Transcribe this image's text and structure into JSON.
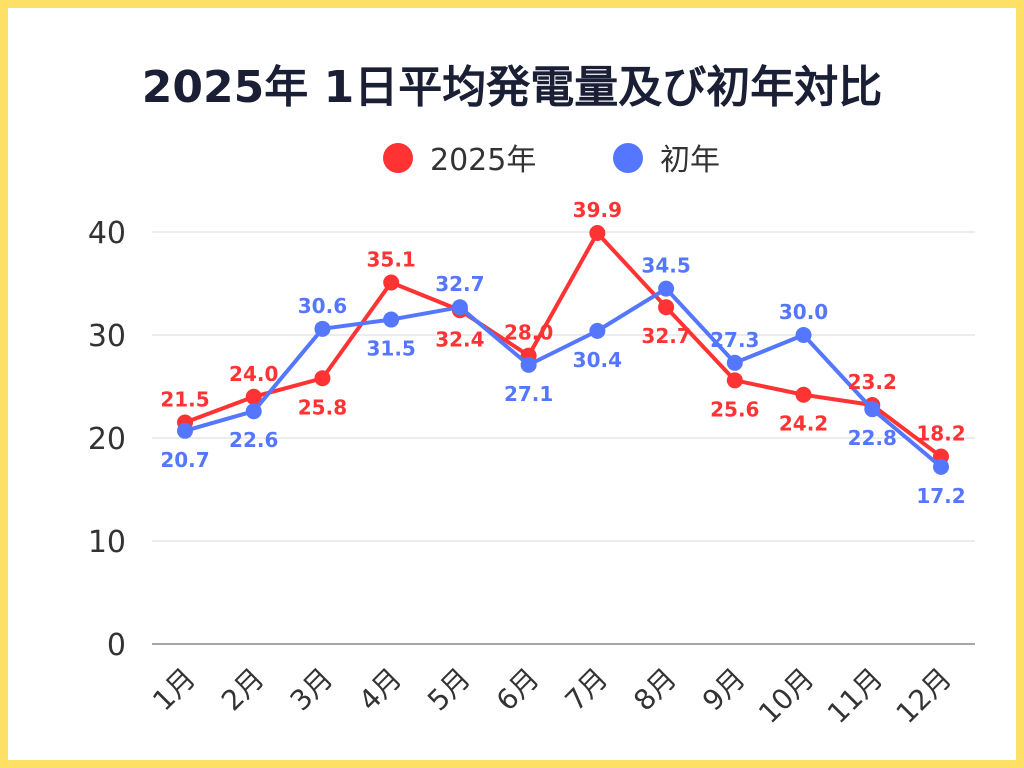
{
  "chart_data": {
    "type": "line",
    "title": "2025年 1日平均発電量及び初年対比",
    "categories": [
      "1月",
      "2月",
      "3月",
      "4月",
      "5月",
      "6月",
      "7月",
      "8月",
      "9月",
      "10月",
      "11月",
      "12月"
    ],
    "series": [
      {
        "name": "2025年",
        "color": "#FF3333",
        "values": [
          21.5,
          24.0,
          25.8,
          35.1,
          32.4,
          28.0,
          39.9,
          32.7,
          25.6,
          24.2,
          23.2,
          18.2
        ]
      },
      {
        "name": "初年",
        "color": "#5577FF",
        "values": [
          20.7,
          22.6,
          30.6,
          31.5,
          32.7,
          27.1,
          30.4,
          34.5,
          27.3,
          30.0,
          22.8,
          17.2
        ]
      }
    ],
    "ylim": [
      0,
      40
    ],
    "yticks": [
      0,
      10,
      20,
      30,
      40
    ],
    "grid": true,
    "legend": "top-center",
    "xlabel": "",
    "ylabel": ""
  }
}
